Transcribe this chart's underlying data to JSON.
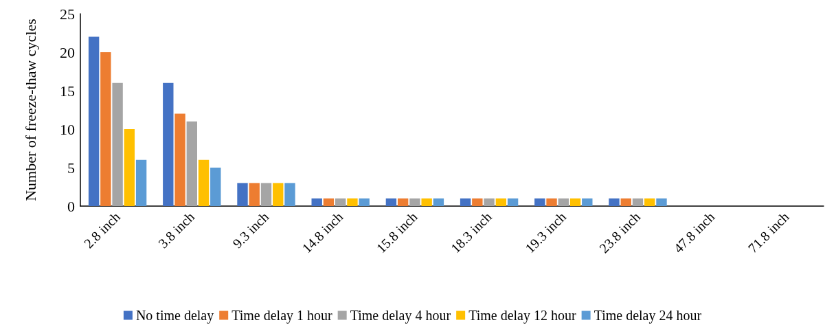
{
  "chart_data": {
    "type": "bar",
    "ylabel": "Number of freeze-thaw cycles",
    "categories": [
      "2.8 inch",
      "3.8 inch",
      "9.3 inch",
      "14.8 inch",
      "15.8 inch",
      "18.3 inch",
      "19.3 inch",
      "23.8 inch",
      "47.8 inch",
      "71.8 inch"
    ],
    "series": [
      {
        "name": "No time delay",
        "color": "#4472c4",
        "values": [
          22,
          16,
          3,
          1,
          1,
          1,
          1,
          1,
          0,
          0
        ]
      },
      {
        "name": "Time delay 1 hour",
        "color": "#ed7d31",
        "values": [
          20,
          12,
          3,
          1,
          1,
          1,
          1,
          1,
          0,
          0
        ]
      },
      {
        "name": "Time delay 4 hour",
        "color": "#a5a5a5",
        "values": [
          16,
          11,
          3,
          1,
          1,
          1,
          1,
          1,
          0,
          0
        ]
      },
      {
        "name": "Time delay 12 hour",
        "color": "#ffc000",
        "values": [
          10,
          6,
          3,
          1,
          1,
          1,
          1,
          1,
          0,
          0
        ]
      },
      {
        "name": "Time delay 24 hour",
        "color": "#5b9bd5",
        "values": [
          6,
          5,
          3,
          1,
          1,
          1,
          1,
          1,
          0,
          0
        ]
      }
    ],
    "ylim": [
      0,
      25
    ],
    "yticks": [
      0,
      5,
      10,
      15,
      20,
      25
    ],
    "grid": false,
    "legend": "bottom"
  }
}
